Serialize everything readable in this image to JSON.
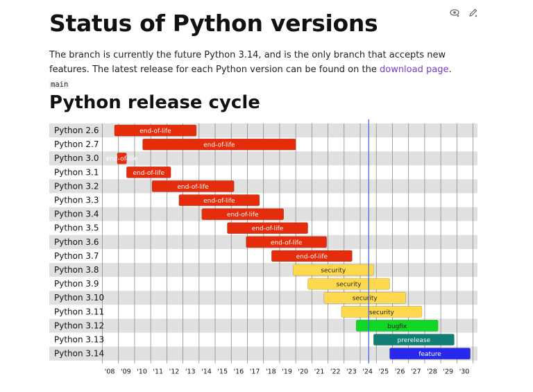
{
  "header": {
    "title": "Status of Python versions",
    "edit_icon": "edit-pencil-icon",
    "view_source_icon": "view-source-icon"
  },
  "intro": {
    "text_before": "The branch is currently the future Python 3.14, and is the only branch that accepts new features. The latest release for each Python version can be found on the ",
    "link_text": "download page",
    "text_after": ".",
    "code": "main"
  },
  "section": {
    "title": "Python release cycle"
  },
  "colors": {
    "end-of-life": "#e52c0b",
    "security": "#ffd94d",
    "bugfix": "#10d624",
    "prerelease": "#0f8073",
    "feature": "#2929ee",
    "today_line": "#3f6fe0",
    "row_stripe": "#e0e0e0"
  },
  "chart_data": {
    "type": "gantt",
    "title": "Python release cycle",
    "xlim": [
      2008,
      2031
    ],
    "x_ticks": [
      "'08",
      "'09",
      "'10",
      "'11",
      "'12",
      "'13",
      "'14",
      "'15",
      "'16",
      "'17",
      "'18",
      "'19",
      "'20",
      "'21",
      "'22",
      "'23",
      "'24",
      "'25",
      "'26",
      "'27",
      "'28",
      "'29",
      "'30"
    ],
    "today": 2024.53,
    "rows": [
      {
        "version": "Python 2.6",
        "start": 2008.75,
        "end": 2013.83,
        "status": "end-of-life"
      },
      {
        "version": "Python 2.7",
        "start": 2010.5,
        "end": 2020.0,
        "status": "end-of-life"
      },
      {
        "version": "Python 3.0",
        "start": 2008.92,
        "end": 2009.5,
        "status": "end-of-life"
      },
      {
        "version": "Python 3.1",
        "start": 2009.5,
        "end": 2012.25,
        "status": "end-of-life"
      },
      {
        "version": "Python 3.2",
        "start": 2011.08,
        "end": 2016.17,
        "status": "end-of-life"
      },
      {
        "version": "Python 3.3",
        "start": 2012.75,
        "end": 2017.75,
        "status": "end-of-life"
      },
      {
        "version": "Python 3.4",
        "start": 2014.17,
        "end": 2019.25,
        "status": "end-of-life"
      },
      {
        "version": "Python 3.5",
        "start": 2015.75,
        "end": 2020.75,
        "status": "end-of-life"
      },
      {
        "version": "Python 3.6",
        "start": 2016.92,
        "end": 2021.92,
        "status": "end-of-life"
      },
      {
        "version": "Python 3.7",
        "start": 2018.5,
        "end": 2023.5,
        "status": "end-of-life"
      },
      {
        "version": "Python 3.8",
        "start": 2019.83,
        "end": 2024.83,
        "status": "security"
      },
      {
        "version": "Python 3.9",
        "start": 2020.75,
        "end": 2025.83,
        "status": "security"
      },
      {
        "version": "Python 3.10",
        "start": 2021.75,
        "end": 2026.83,
        "status": "security"
      },
      {
        "version": "Python 3.11",
        "start": 2022.83,
        "end": 2027.83,
        "status": "security"
      },
      {
        "version": "Python 3.12",
        "start": 2023.75,
        "end": 2028.83,
        "status": "bugfix"
      },
      {
        "version": "Python 3.13",
        "start": 2024.83,
        "end": 2029.83,
        "status": "prerelease"
      },
      {
        "version": "Python 3.14",
        "start": 2025.83,
        "end": 2030.83,
        "status": "feature"
      }
    ]
  }
}
